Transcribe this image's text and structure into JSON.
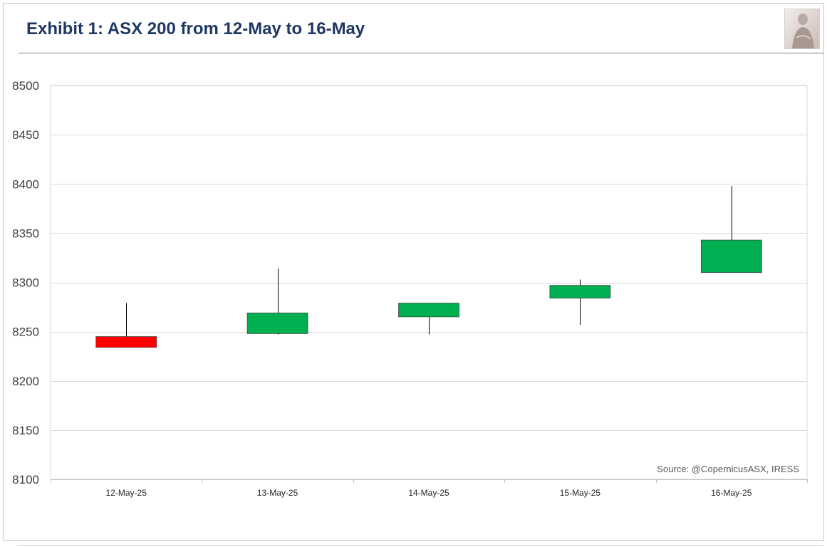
{
  "header": {
    "title": "Exhibit 1: ASX 200 from 12-May to 16-May"
  },
  "logo": {
    "icon": "statue-portrait-icon"
  },
  "source_note": "Source: @CopernicusASX, IRESS",
  "colors": {
    "title": "#1f3864",
    "up": "#00b050",
    "down": "#ff0000",
    "grid": "#d9d9d9"
  },
  "chart_data": {
    "type": "candlestick",
    "title": "Exhibit 1: ASX 200 from 12-May to 16-May",
    "xlabel": "",
    "ylabel": "",
    "ylim": [
      8100,
      8500
    ],
    "yticks": [
      8100,
      8150,
      8200,
      8250,
      8300,
      8350,
      8400,
      8450,
      8500
    ],
    "grid": true,
    "categories": [
      "12-May-25",
      "13-May-25",
      "14-May-25",
      "15-May-25",
      "16-May-25"
    ],
    "open": [
      8245,
      8248,
      8265,
      8284,
      8310
    ],
    "high": [
      8279,
      8314,
      8279,
      8303,
      8398
    ],
    "low": [
      8234,
      8247,
      8247,
      8257,
      8310
    ],
    "close": [
      8234,
      8269,
      8279,
      8297,
      8343
    ]
  }
}
